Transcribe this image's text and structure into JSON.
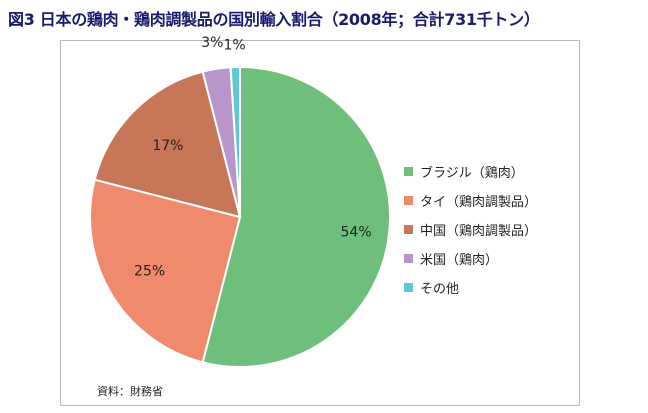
{
  "title": "図3 日本の鶏肉・鶏肉調製品の国別輸入割合（2008年；合計731千トン）",
  "source": "資料：財務省",
  "chart_data": {
    "type": "pie",
    "title": "図3 日本の鶏肉・鶏肉調製品の国別輸入割合（2008年；合計731千トン）",
    "start": "12 o'clock",
    "direction": "clockwise",
    "legend_position": "right",
    "slices": [
      {
        "label": "ブラジル（鶏肉）",
        "value": 54,
        "value_label": "54%",
        "color": "#6dbf7b"
      },
      {
        "label": "タイ（鶏肉調製品）",
        "value": 25,
        "value_label": "25%",
        "color": "#f08a6c"
      },
      {
        "label": "中国（鶏肉調製品）",
        "value": 17,
        "value_label": "17%",
        "color": "#c77758"
      },
      {
        "label": "米国（鶏肉）",
        "value": 3,
        "value_label": "3%",
        "color": "#b896cc"
      },
      {
        "label": "その他",
        "value": 1,
        "value_label": "1%",
        "color": "#5ec7dc"
      }
    ]
  }
}
